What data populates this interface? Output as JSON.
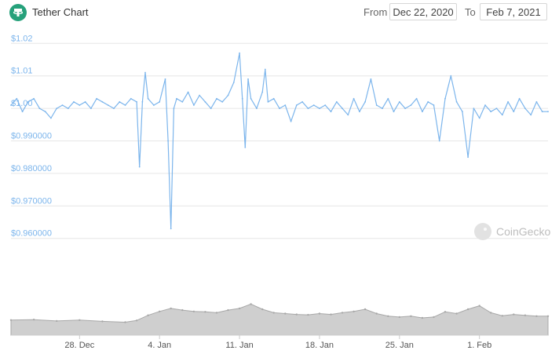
{
  "header": {
    "title": "Tether Chart",
    "from_label": "From",
    "from_value": "Dec 22, 2020",
    "to_label": "To",
    "to_value": "Feb 7, 2021"
  },
  "watermark": "CoinGecko",
  "colors": {
    "line": "#7cb5ec",
    "axis_label": "#7cb5ec",
    "grid": "#e6e6e6",
    "volume": "#a8a8a8",
    "brand": "#26a17b"
  },
  "chart_data": {
    "type": "line",
    "title": "",
    "xlabel": "",
    "ylabel": "",
    "price": {
      "ylim": [
        0.958,
        1.022
      ],
      "y_ticks": [
        {
          "value": 1.02,
          "label": "$1.02"
        },
        {
          "value": 1.01,
          "label": "$1.01"
        },
        {
          "value": 1.0,
          "label": "$1.00"
        },
        {
          "value": 0.99,
          "label": "$0.990000"
        },
        {
          "value": 0.98,
          "label": "$0.980000"
        },
        {
          "value": 0.97,
          "label": "$0.970000"
        },
        {
          "value": 0.96,
          "label": "$0.960000"
        }
      ],
      "xlim": [
        "2020-12-22",
        "2021-02-07"
      ],
      "x_ticks": [
        {
          "date": "2020-12-28",
          "label": "28. Dec"
        },
        {
          "date": "2021-01-04",
          "label": "4. Jan"
        },
        {
          "date": "2021-01-11",
          "label": "11. Jan"
        },
        {
          "date": "2021-01-18",
          "label": "18. Jan"
        },
        {
          "date": "2021-01-25",
          "label": "25. Jan"
        },
        {
          "date": "2021-02-01",
          "label": "1. Feb"
        }
      ],
      "series": [
        {
          "points": [
            [
              "2020-12-22",
              1.001
            ],
            [
              "2020-12-22T12",
              1.003
            ],
            [
              "2020-12-23",
              0.999
            ],
            [
              "2020-12-23T12",
              1.002
            ],
            [
              "2020-12-24",
              1.003
            ],
            [
              "2020-12-24T12",
              1.0
            ],
            [
              "2020-12-25",
              0.999
            ],
            [
              "2020-12-25T12",
              0.997
            ],
            [
              "2020-12-26",
              1.0
            ],
            [
              "2020-12-26T12",
              1.001
            ],
            [
              "2020-12-27",
              1.0
            ],
            [
              "2020-12-27T12",
              1.002
            ],
            [
              "2020-12-28",
              1.001
            ],
            [
              "2020-12-28T12",
              1.002
            ],
            [
              "2020-12-29",
              1.0
            ],
            [
              "2020-12-29T12",
              1.003
            ],
            [
              "2020-12-30",
              1.002
            ],
            [
              "2020-12-30T12",
              1.001
            ],
            [
              "2020-12-31",
              1.0
            ],
            [
              "2020-12-31T12",
              1.002
            ],
            [
              "2021-01-01",
              1.001
            ],
            [
              "2021-01-01T12",
              1.003
            ],
            [
              "2021-01-02",
              1.002
            ],
            [
              "2021-01-02T06",
              0.982
            ],
            [
              "2021-01-02T12",
              1.002
            ],
            [
              "2021-01-02T18",
              1.011
            ],
            [
              "2021-01-03",
              1.003
            ],
            [
              "2021-01-03T12",
              1.001
            ],
            [
              "2021-01-04",
              1.002
            ],
            [
              "2021-01-04T12",
              1.009
            ],
            [
              "2021-01-04T18",
              0.99
            ],
            [
              "2021-01-05",
              0.963
            ],
            [
              "2021-01-05T06",
              1.0
            ],
            [
              "2021-01-05T12",
              1.003
            ],
            [
              "2021-01-06",
              1.002
            ],
            [
              "2021-01-06T12",
              1.005
            ],
            [
              "2021-01-07",
              1.001
            ],
            [
              "2021-01-07T12",
              1.004
            ],
            [
              "2021-01-08",
              1.002
            ],
            [
              "2021-01-08T12",
              1.0
            ],
            [
              "2021-01-09",
              1.003
            ],
            [
              "2021-01-09T12",
              1.002
            ],
            [
              "2021-01-10",
              1.004
            ],
            [
              "2021-01-10T12",
              1.008
            ],
            [
              "2021-01-11",
              1.017
            ],
            [
              "2021-01-11T06",
              1.003
            ],
            [
              "2021-01-11T12",
              0.988
            ],
            [
              "2021-01-11T18",
              1.009
            ],
            [
              "2021-01-12",
              1.003
            ],
            [
              "2021-01-12T12",
              1.0
            ],
            [
              "2021-01-13",
              1.005
            ],
            [
              "2021-01-13T06",
              1.012
            ],
            [
              "2021-01-13T12",
              1.002
            ],
            [
              "2021-01-14",
              1.003
            ],
            [
              "2021-01-14T12",
              1.0
            ],
            [
              "2021-01-15",
              1.001
            ],
            [
              "2021-01-15T12",
              0.996
            ],
            [
              "2021-01-16",
              1.001
            ],
            [
              "2021-01-16T12",
              1.002
            ],
            [
              "2021-01-17",
              1.0
            ],
            [
              "2021-01-17T12",
              1.001
            ],
            [
              "2021-01-18",
              1.0
            ],
            [
              "2021-01-18T12",
              1.001
            ],
            [
              "2021-01-19",
              0.999
            ],
            [
              "2021-01-19T12",
              1.002
            ],
            [
              "2021-01-20",
              1.0
            ],
            [
              "2021-01-20T12",
              0.998
            ],
            [
              "2021-01-21",
              1.003
            ],
            [
              "2021-01-21T12",
              0.999
            ],
            [
              "2021-01-22",
              1.002
            ],
            [
              "2021-01-22T12",
              1.009
            ],
            [
              "2021-01-23",
              1.001
            ],
            [
              "2021-01-23T12",
              1.0
            ],
            [
              "2021-01-24",
              1.003
            ],
            [
              "2021-01-24T12",
              0.999
            ],
            [
              "2021-01-25",
              1.002
            ],
            [
              "2021-01-25T12",
              1.0
            ],
            [
              "2021-01-26",
              1.001
            ],
            [
              "2021-01-26T12",
              1.003
            ],
            [
              "2021-01-27",
              0.999
            ],
            [
              "2021-01-27T12",
              1.002
            ],
            [
              "2021-01-28",
              1.001
            ],
            [
              "2021-01-28T12",
              0.99
            ],
            [
              "2021-01-29",
              1.003
            ],
            [
              "2021-01-29T12",
              1.01
            ],
            [
              "2021-01-30",
              1.002
            ],
            [
              "2021-01-30T12",
              0.999
            ],
            [
              "2021-01-31",
              0.985
            ],
            [
              "2021-01-31T12",
              1.0
            ],
            [
              "2021-02-01",
              0.997
            ],
            [
              "2021-02-01T12",
              1.001
            ],
            [
              "2021-02-02",
              0.999
            ],
            [
              "2021-02-02T12",
              1.0
            ],
            [
              "2021-02-03",
              0.998
            ],
            [
              "2021-02-03T12",
              1.002
            ],
            [
              "2021-02-04",
              0.999
            ],
            [
              "2021-02-04T12",
              1.003
            ],
            [
              "2021-02-05",
              1.0
            ],
            [
              "2021-02-05T12",
              0.998
            ],
            [
              "2021-02-06",
              1.002
            ],
            [
              "2021-02-06T12",
              0.999
            ],
            [
              "2021-02-07",
              0.999
            ]
          ]
        }
      ]
    },
    "volume": {
      "type": "area",
      "series": [
        {
          "points": [
            [
              "2020-12-22",
              0.35
            ],
            [
              "2020-12-24",
              0.36
            ],
            [
              "2020-12-26",
              0.33
            ],
            [
              "2020-12-28",
              0.35
            ],
            [
              "2020-12-30",
              0.32
            ],
            [
              "2021-01-01",
              0.3
            ],
            [
              "2021-01-02",
              0.34
            ],
            [
              "2021-01-03",
              0.46
            ],
            [
              "2021-01-04",
              0.55
            ],
            [
              "2021-01-05",
              0.62
            ],
            [
              "2021-01-06",
              0.58
            ],
            [
              "2021-01-07",
              0.55
            ],
            [
              "2021-01-08",
              0.54
            ],
            [
              "2021-01-09",
              0.52
            ],
            [
              "2021-01-10",
              0.58
            ],
            [
              "2021-01-11",
              0.62
            ],
            [
              "2021-01-12",
              0.72
            ],
            [
              "2021-01-13",
              0.6
            ],
            [
              "2021-01-14",
              0.52
            ],
            [
              "2021-01-15",
              0.5
            ],
            [
              "2021-01-16",
              0.48
            ],
            [
              "2021-01-17",
              0.47
            ],
            [
              "2021-01-18",
              0.5
            ],
            [
              "2021-01-19",
              0.48
            ],
            [
              "2021-01-20",
              0.52
            ],
            [
              "2021-01-21",
              0.55
            ],
            [
              "2021-01-22",
              0.6
            ],
            [
              "2021-01-23",
              0.5
            ],
            [
              "2021-01-24",
              0.44
            ],
            [
              "2021-01-25",
              0.42
            ],
            [
              "2021-01-26",
              0.44
            ],
            [
              "2021-01-27",
              0.4
            ],
            [
              "2021-01-28",
              0.42
            ],
            [
              "2021-01-29",
              0.54
            ],
            [
              "2021-01-30",
              0.5
            ],
            [
              "2021-01-31",
              0.6
            ],
            [
              "2021-02-01",
              0.68
            ],
            [
              "2021-02-02",
              0.52
            ],
            [
              "2021-02-03",
              0.45
            ],
            [
              "2021-02-04",
              0.48
            ],
            [
              "2021-02-05",
              0.46
            ],
            [
              "2021-02-06",
              0.44
            ],
            [
              "2021-02-07",
              0.44
            ]
          ]
        }
      ]
    }
  }
}
